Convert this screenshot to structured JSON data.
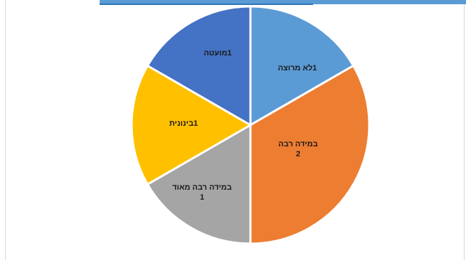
{
  "chart_data": {
    "type": "pie",
    "title": "",
    "slices": [
      {
        "category": "לא מרוצה",
        "value": 1,
        "color": "#5b9bd5"
      },
      {
        "category": "במידה רבה",
        "value": 2,
        "color": "#ed7d31"
      },
      {
        "category": "במידה רבה מאוד",
        "value": 1,
        "color": "#a5a5a5"
      },
      {
        "category": "בינונית",
        "value": 1,
        "color": "#ffc000"
      },
      {
        "category": "מועטה",
        "value": 1,
        "color": "#4472c4"
      }
    ],
    "legend": "none",
    "slice_border_color": "#ffffff"
  }
}
